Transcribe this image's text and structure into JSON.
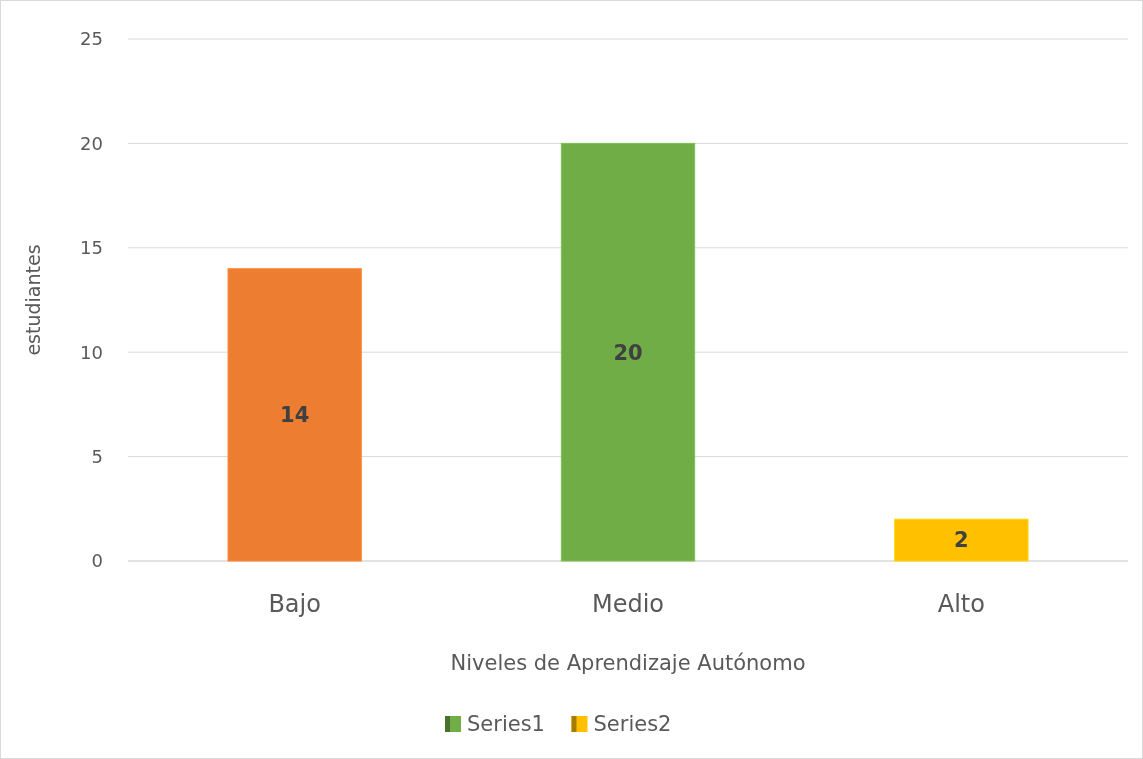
{
  "chart_data": {
    "type": "bar",
    "xlabel": "Niveles de Aprendizaje Autónomo",
    "ylabel": "estudiantes",
    "categories": [
      "Bajo",
      "Medio",
      "Alto"
    ],
    "series": [
      {
        "name": "Series1",
        "color": "#70ad47",
        "colors": [
          "#ed7d31",
          "#70ad47",
          null
        ],
        "values": [
          14,
          20,
          null
        ]
      },
      {
        "name": "Series2",
        "color": "#ffc000",
        "values": [
          null,
          null,
          2
        ]
      }
    ],
    "ylim": [
      0,
      25
    ],
    "yticks": [
      0,
      5,
      10,
      15,
      20,
      25
    ],
    "grid": "y",
    "legend": "bottom",
    "data_labels": true
  }
}
